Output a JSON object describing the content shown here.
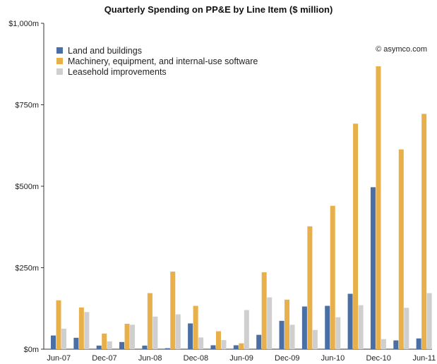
{
  "chart_data": {
    "type": "bar",
    "title": "Quarterly Spending on PP&E by Line Item ($ million)",
    "xlabel": "",
    "ylabel": "",
    "ylim": [
      0,
      1000
    ],
    "grid": false,
    "legend_position": "top-left",
    "y_tick_labels": [
      "$0m",
      "$250m",
      "$500m",
      "$750m",
      "$1,000m"
    ],
    "y_tick_values": [
      0,
      250,
      500,
      750,
      1000
    ],
    "x_tick_labels": [
      "Jun-07",
      "Dec-07",
      "Jun-08",
      "Dec-08",
      "Jun-09",
      "Dec-09",
      "Jun-10",
      "Dec-10",
      "Jun-11"
    ],
    "categories": [
      "Jun-07",
      "Sep-07",
      "Dec-07",
      "Mar-08",
      "Jun-08",
      "Sep-08",
      "Dec-08",
      "Mar-09",
      "Jun-09",
      "Sep-09",
      "Dec-09",
      "Mar-10",
      "Jun-10",
      "Sep-10",
      "Dec-10",
      "Mar-11",
      "Jun-11"
    ],
    "series": [
      {
        "name": "Land and buildings",
        "color": "#4a6fa5",
        "values": [
          42,
          35,
          11,
          22,
          11,
          3,
          79,
          12,
          12,
          44,
          87,
          131,
          133,
          170,
          497,
          27,
          33
        ]
      },
      {
        "name": "Machinery, equipment, and internal-use software",
        "color": "#e8b04a",
        "values": [
          150,
          128,
          48,
          78,
          172,
          238,
          133,
          55,
          18,
          236,
          152,
          377,
          440,
          692,
          868,
          613,
          722
        ]
      },
      {
        "name": "Leasehold improvements",
        "color": "#cfcfcf",
        "values": [
          63,
          114,
          24,
          75,
          100,
          107,
          36,
          28,
          120,
          159,
          75,
          59,
          98,
          135,
          31,
          127,
          172
        ]
      }
    ],
    "annotation": "© asymco.com"
  }
}
